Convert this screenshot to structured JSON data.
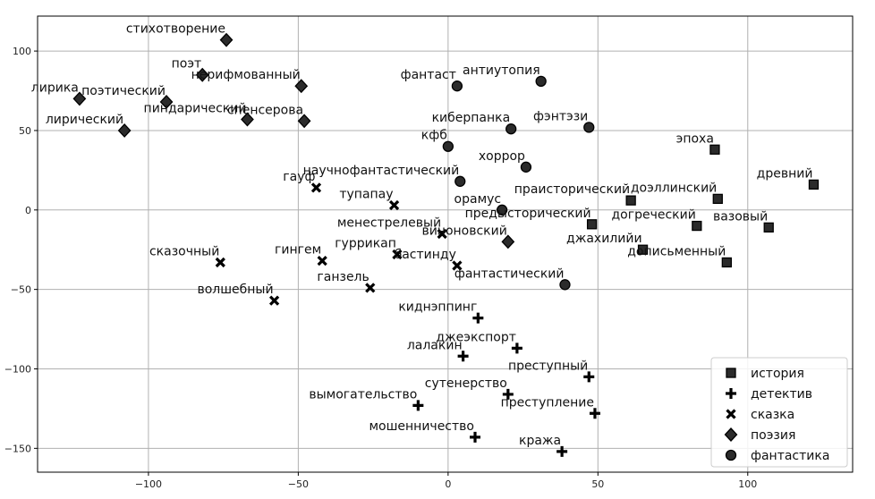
{
  "chart_data": {
    "type": "scatter",
    "title": "",
    "xlabel": "",
    "ylabel": "",
    "xlim": [
      -137,
      135
    ],
    "ylim": [
      -165,
      122
    ],
    "xticks": [
      -100,
      -50,
      0,
      50,
      100
    ],
    "yticks": [
      -150,
      -100,
      -50,
      0,
      50,
      100
    ],
    "tick_labels": {
      "x": [
        "−100",
        "−50",
        "0",
        "50",
        "100"
      ],
      "y": [
        "−150",
        "−100",
        "−50",
        "0",
        "50",
        "100"
      ]
    },
    "grid": true,
    "legend_position": "bottom-right",
    "colors": {
      "marker_fill": "#2b2b2b",
      "marker_edge": "#000000",
      "grid": "#b0b0b0"
    },
    "series": [
      {
        "name": "история",
        "marker": "square",
        "points": [
          {
            "x": 89,
            "y": 38,
            "label": "эпоха"
          },
          {
            "x": 122,
            "y": 16,
            "label": "древний"
          },
          {
            "x": 90,
            "y": 7,
            "label": "доэллинский"
          },
          {
            "x": 61,
            "y": 6,
            "label": "праисторический"
          },
          {
            "x": 48,
            "y": -9,
            "label": "предысторический"
          },
          {
            "x": 83,
            "y": -10,
            "label": "догреческий"
          },
          {
            "x": 107,
            "y": -11,
            "label": "вазовый"
          },
          {
            "x": 65,
            "y": -25,
            "label": "джахилийи"
          },
          {
            "x": 93,
            "y": -33,
            "label": "дописьменный"
          }
        ]
      },
      {
        "name": "детектив",
        "marker": "plus",
        "points": [
          {
            "x": 10,
            "y": -68,
            "label": "киднэппинг"
          },
          {
            "x": 23,
            "y": -87,
            "label": "джеэкспорт"
          },
          {
            "x": 5,
            "y": -92,
            "label": "лалакин"
          },
          {
            "x": 47,
            "y": -105,
            "label": "преступный"
          },
          {
            "x": 20,
            "y": -116,
            "label": "сутенерство"
          },
          {
            "x": -10,
            "y": -123,
            "label": "вымогательство"
          },
          {
            "x": 49,
            "y": -128,
            "label": "преступление"
          },
          {
            "x": 9,
            "y": -143,
            "label": "мошенничество"
          },
          {
            "x": 38,
            "y": -152,
            "label": "кража"
          }
        ]
      },
      {
        "name": "сказка",
        "marker": "x",
        "points": [
          {
            "x": -44,
            "y": 14,
            "label": "гауф"
          },
          {
            "x": -18,
            "y": 3,
            "label": "тупапау"
          },
          {
            "x": -2,
            "y": -15,
            "label": "менестрелевый"
          },
          {
            "x": -17,
            "y": -28,
            "label": "гуррикап"
          },
          {
            "x": 3,
            "y": -35,
            "label": "бастинду"
          },
          {
            "x": -76,
            "y": -33,
            "label": "сказочный"
          },
          {
            "x": -42,
            "y": -32,
            "label": "гингем"
          },
          {
            "x": -26,
            "y": -49,
            "label": "ганзель"
          },
          {
            "x": -58,
            "y": -57,
            "label": "волшебный"
          }
        ]
      },
      {
        "name": "поэзия",
        "marker": "diamond",
        "points": [
          {
            "x": -74,
            "y": 107,
            "label": "стихотворение"
          },
          {
            "x": -82,
            "y": 85,
            "label": "поэт"
          },
          {
            "x": -49,
            "y": 78,
            "label": "нерифмованный"
          },
          {
            "x": -123,
            "y": 70,
            "label": "лирика"
          },
          {
            "x": -94,
            "y": 68,
            "label": "поэтический"
          },
          {
            "x": -67,
            "y": 57,
            "label": "пиндарический"
          },
          {
            "x": -48,
            "y": 56,
            "label": "спенсерова"
          },
          {
            "x": -108,
            "y": 50,
            "label": "лирический"
          },
          {
            "x": 20,
            "y": -20,
            "label": "виноновский"
          }
        ]
      },
      {
        "name": "фантастика",
        "marker": "circle",
        "points": [
          {
            "x": 3,
            "y": 78,
            "label": "фантаст"
          },
          {
            "x": 31,
            "y": 81,
            "label": "антиутопия"
          },
          {
            "x": 21,
            "y": 51,
            "label": "киберпанка"
          },
          {
            "x": 47,
            "y": 52,
            "label": "фэнтэзи"
          },
          {
            "x": 0,
            "y": 40,
            "label": "кфб"
          },
          {
            "x": 26,
            "y": 27,
            "label": "хоррор"
          },
          {
            "x": 4,
            "y": 18,
            "label": "научнофантастический"
          },
          {
            "x": 18,
            "y": 0,
            "label": "орамус"
          },
          {
            "x": 39,
            "y": -47,
            "label": "фантастический"
          }
        ]
      }
    ]
  }
}
